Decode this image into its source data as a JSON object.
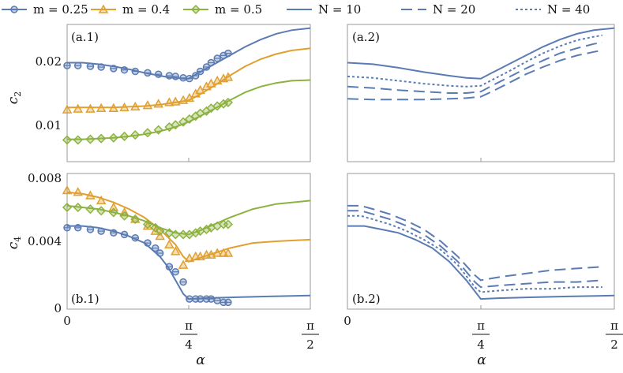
{
  "colors": {
    "blue": "#5b7bb3",
    "orange": "#e0a030",
    "green": "#8cb240"
  },
  "legend": {
    "items": [
      {
        "label": "m = 0.25",
        "color": "#5b7bb3",
        "kind": "marker-circle"
      },
      {
        "label": "m = 0.4",
        "color": "#e0a030",
        "kind": "marker-triangle"
      },
      {
        "label": "m = 0.5",
        "color": "#8cb240",
        "kind": "marker-diamond"
      },
      {
        "label": "N = 10",
        "color": "#5b7bb3",
        "kind": "solid"
      },
      {
        "label": "N = 20",
        "color": "#5b7bb3",
        "kind": "dashed"
      },
      {
        "label": "N = 40",
        "color": "#5b7bb3",
        "kind": "dotted"
      }
    ]
  },
  "axes": {
    "xlabel": "α",
    "x_ticks": [
      "0",
      "π/4",
      "π/2"
    ],
    "ylabel_top": "c2",
    "ylabel_bottom": "c4",
    "y_ticks_top": [
      "0.02",
      "0.01"
    ],
    "y_ticks_bottom": [
      "0.008",
      "0.004",
      "0"
    ]
  },
  "panels": {
    "a1": "(a.1)",
    "a2": "(a.2)",
    "b1": "(b.1)",
    "b2": "(b.2)"
  },
  "chart_data": [
    {
      "panel": "(a.1)",
      "type": "line",
      "xlabel": "",
      "ylabel": "c2",
      "xlim": [
        0,
        1.5708
      ],
      "ylim": [
        0.0055,
        0.0245
      ],
      "series": [
        {
          "name": "m = 0.25",
          "color": "#5b7bb3",
          "x": [
            0,
            0.1,
            0.2,
            0.3,
            0.4,
            0.5,
            0.6,
            0.65,
            0.7,
            0.75,
            0.785,
            0.85,
            0.95,
            1.05,
            1.15,
            1.25,
            1.35,
            1.45,
            1.5708
          ],
          "y": [
            0.0192,
            0.0192,
            0.019,
            0.0187,
            0.0183,
            0.0178,
            0.0174,
            0.0172,
            0.0171,
            0.017,
            0.017,
            0.0178,
            0.019,
            0.0202,
            0.0214,
            0.0224,
            0.0232,
            0.0237,
            0.024
          ],
          "markers": {
            "shape": "circle",
            "x": [
              0,
              0.07,
              0.15,
              0.22,
              0.3,
              0.37,
              0.44,
              0.52,
              0.59,
              0.66,
              0.7,
              0.75,
              0.79,
              0.83,
              0.86,
              0.9,
              0.93,
              0.97,
              1.01,
              1.04
            ],
            "y": [
              0.0188,
              0.0188,
              0.0187,
              0.0186,
              0.0184,
              0.0182,
              0.018,
              0.0178,
              0.0176,
              0.0174,
              0.0173,
              0.0171,
              0.017,
              0.0174,
              0.018,
              0.0186,
              0.0192,
              0.0198,
              0.0202,
              0.0205
            ]
          }
        },
        {
          "name": "m = 0.4",
          "color": "#e0a030",
          "x": [
            0,
            0.1,
            0.2,
            0.3,
            0.4,
            0.5,
            0.6,
            0.7,
            0.785,
            0.85,
            0.95,
            1.05,
            1.15,
            1.25,
            1.35,
            1.45,
            1.5708
          ],
          "y": [
            0.013,
            0.013,
            0.013,
            0.013,
            0.0131,
            0.0132,
            0.0134,
            0.0137,
            0.014,
            0.0147,
            0.016,
            0.0174,
            0.0187,
            0.0197,
            0.0204,
            0.0209,
            0.0212
          ],
          "markers": {
            "shape": "triangle",
            "x": [
              0,
              0.07,
              0.15,
              0.22,
              0.3,
              0.37,
              0.44,
              0.52,
              0.59,
              0.66,
              0.7,
              0.75,
              0.79,
              0.83,
              0.86,
              0.9,
              0.93,
              0.97,
              1.01,
              1.04
            ],
            "y": [
              0.0127,
              0.0128,
              0.0128,
              0.0129,
              0.0129,
              0.013,
              0.0131,
              0.0133,
              0.0135,
              0.0137,
              0.0138,
              0.014,
              0.0143,
              0.0149,
              0.0154,
              0.0159,
              0.0163,
              0.0167,
              0.017,
              0.0172
            ]
          }
        },
        {
          "name": "m = 0.5",
          "color": "#8cb240",
          "x": [
            0,
            0.1,
            0.2,
            0.3,
            0.4,
            0.5,
            0.6,
            0.7,
            0.785,
            0.85,
            0.95,
            1.05,
            1.15,
            1.25,
            1.35,
            1.45,
            1.5708
          ],
          "y": [
            0.0086,
            0.0086,
            0.0087,
            0.0088,
            0.009,
            0.0093,
            0.0097,
            0.0103,
            0.011,
            0.0117,
            0.0128,
            0.014,
            0.0151,
            0.0159,
            0.0164,
            0.0167,
            0.0168
          ],
          "markers": {
            "shape": "diamond",
            "x": [
              0,
              0.07,
              0.15,
              0.22,
              0.3,
              0.37,
              0.44,
              0.52,
              0.59,
              0.66,
              0.7,
              0.75,
              0.79,
              0.83,
              0.86,
              0.9,
              0.93,
              0.97,
              1.01,
              1.04
            ],
            "y": [
              0.0085,
              0.0085,
              0.0086,
              0.0087,
              0.0088,
              0.009,
              0.0092,
              0.0095,
              0.0099,
              0.0103,
              0.0106,
              0.011,
              0.0114,
              0.0118,
              0.0122,
              0.0125,
              0.0129,
              0.0132,
              0.0135,
              0.0137
            ]
          }
        }
      ]
    },
    {
      "panel": "(a.2)",
      "type": "line",
      "xlabel": "",
      "ylabel": "",
      "xlim": [
        0,
        1.5708
      ],
      "ylim": [
        0.0055,
        0.0245
      ],
      "series": [
        {
          "name": "N = 10",
          "color": "#5b7bb3",
          "dash": "solid",
          "x": [
            0,
            0.15,
            0.3,
            0.45,
            0.6,
            0.7,
            0.785,
            0.85,
            0.95,
            1.05,
            1.15,
            1.25,
            1.35,
            1.45,
            1.5708
          ],
          "y": [
            0.0192,
            0.019,
            0.0185,
            0.0179,
            0.0174,
            0.0171,
            0.017,
            0.0178,
            0.019,
            0.0202,
            0.0214,
            0.0224,
            0.0232,
            0.0237,
            0.024
          ]
        },
        {
          "name": "N = 20",
          "color": "#5b7bb3",
          "dash": "dashed",
          "x": [
            0,
            0.15,
            0.3,
            0.45,
            0.6,
            0.7,
            0.785,
            0.85,
            0.95,
            1.05,
            1.15,
            1.25,
            1.35,
            1.45,
            1.5
          ],
          "y": [
            0.0142,
            0.0141,
            0.0141,
            0.0141,
            0.0142,
            0.0143,
            0.0145,
            0.0152,
            0.0164,
            0.0176,
            0.0186,
            0.0195,
            0.0202,
            0.0207,
            0.0209
          ]
        },
        {
          "name": "N = 40",
          "color": "#5b7bb3",
          "dash": "dotted",
          "x": [
            0,
            0.15,
            0.3,
            0.45,
            0.6,
            0.7,
            0.785,
            0.85,
            0.95,
            1.05,
            1.15,
            1.25,
            1.35,
            1.45,
            1.5
          ],
          "y": [
            0.0173,
            0.0171,
            0.0167,
            0.0163,
            0.016,
            0.0159,
            0.016,
            0.0168,
            0.018,
            0.0193,
            0.0205,
            0.0215,
            0.0223,
            0.0228,
            0.023
          ]
        },
        {
          "name": "",
          "color": "#5b7bb3",
          "dash": "dashed",
          "x": [
            0,
            0.15,
            0.3,
            0.45,
            0.6,
            0.7,
            0.785,
            0.85,
            0.95,
            1.05,
            1.15,
            1.25,
            1.35,
            1.45,
            1.5
          ],
          "y": [
            0.0159,
            0.0157,
            0.0154,
            0.0152,
            0.015,
            0.015,
            0.0152,
            0.016,
            0.0172,
            0.0184,
            0.0195,
            0.0205,
            0.0212,
            0.0218,
            0.022
          ]
        }
      ]
    },
    {
      "panel": "(b.1)",
      "type": "line",
      "xlabel": "α",
      "ylabel": "c4",
      "xlim": [
        0,
        1.5708
      ],
      "ylim": [
        0,
        0.008
      ],
      "series": [
        {
          "name": "m = 0.25",
          "color": "#5b7bb3",
          "x": [
            0,
            0.1,
            0.2,
            0.3,
            0.4,
            0.5,
            0.6,
            0.65,
            0.7,
            0.75,
            0.785,
            0.9,
            1.1,
            1.3,
            1.5708
          ],
          "y": [
            0.0049,
            0.0049,
            0.0048,
            0.0046,
            0.0043,
            0.0039,
            0.0031,
            0.0025,
            0.0017,
            0.0009,
            0.0006,
            0.00065,
            0.0007,
            0.00075,
            0.0008
          ],
          "markers": {
            "shape": "circle",
            "x": [
              0,
              0.07,
              0.15,
              0.22,
              0.3,
              0.37,
              0.44,
              0.52,
              0.57,
              0.6,
              0.66,
              0.7,
              0.75,
              0.79,
              0.83,
              0.86,
              0.9,
              0.93,
              0.97,
              1.01,
              1.04
            ],
            "y": [
              0.0048,
              0.0048,
              0.0047,
              0.0046,
              0.0045,
              0.0044,
              0.0042,
              0.0039,
              0.0036,
              0.0033,
              0.0025,
              0.0022,
              0.0016,
              0.0006,
              0.0006,
              0.0006,
              0.0006,
              0.0006,
              0.0005,
              0.0004,
              0.0004
            ]
          }
        },
        {
          "name": "m = 0.4",
          "color": "#e0a030",
          "x": [
            0,
            0.1,
            0.2,
            0.3,
            0.4,
            0.5,
            0.6,
            0.7,
            0.75,
            0.785,
            0.85,
            0.95,
            1.05,
            1.2,
            1.35,
            1.5708
          ],
          "y": [
            0.0069,
            0.0068,
            0.0066,
            0.0063,
            0.0059,
            0.0054,
            0.0047,
            0.0038,
            0.0031,
            0.0028,
            0.003,
            0.0033,
            0.0036,
            0.0039,
            0.004,
            0.0041
          ],
          "markers": {
            "shape": "triangle",
            "x": [
              0,
              0.07,
              0.15,
              0.22,
              0.3,
              0.37,
              0.44,
              0.52,
              0.57,
              0.6,
              0.66,
              0.7,
              0.75,
              0.79,
              0.83,
              0.86,
              0.9,
              0.93,
              0.97,
              1.01,
              1.04
            ],
            "y": [
              0.007,
              0.0069,
              0.0067,
              0.0064,
              0.006,
              0.0057,
              0.0053,
              0.0049,
              0.0046,
              0.0043,
              0.0038,
              0.0034,
              0.0026,
              0.003,
              0.0031,
              0.0031,
              0.0032,
              0.0032,
              0.0033,
              0.0033,
              0.0033
            ]
          }
        },
        {
          "name": "m = 0.5",
          "color": "#8cb240",
          "x": [
            0,
            0.1,
            0.2,
            0.3,
            0.4,
            0.5,
            0.6,
            0.7,
            0.785,
            0.85,
            0.95,
            1.05,
            1.2,
            1.35,
            1.5708
          ],
          "y": [
            0.0061,
            0.006,
            0.0059,
            0.0057,
            0.0055,
            0.0052,
            0.0048,
            0.0045,
            0.0044,
            0.0046,
            0.005,
            0.0054,
            0.0059,
            0.0062,
            0.0064
          ],
          "markers": {
            "shape": "diamond",
            "x": [
              0,
              0.07,
              0.15,
              0.22,
              0.3,
              0.37,
              0.44,
              0.52,
              0.57,
              0.6,
              0.66,
              0.7,
              0.75,
              0.79,
              0.83,
              0.86,
              0.9,
              0.93,
              0.97,
              1.01,
              1.04
            ],
            "y": [
              0.006,
              0.006,
              0.0059,
              0.0058,
              0.0057,
              0.0055,
              0.0053,
              0.005,
              0.0048,
              0.0046,
              0.0045,
              0.0044,
              0.0044,
              0.0044,
              0.0045,
              0.0046,
              0.0047,
              0.0048,
              0.0049,
              0.005,
              0.005
            ]
          }
        }
      ]
    },
    {
      "panel": "(b.2)",
      "type": "line",
      "xlabel": "α",
      "ylabel": "",
      "xlim": [
        0,
        1.5708
      ],
      "ylim": [
        0,
        0.008
      ],
      "series": [
        {
          "name": "N = 10",
          "color": "#5b7bb3",
          "dash": "solid",
          "x": [
            0,
            0.1,
            0.2,
            0.3,
            0.4,
            0.5,
            0.6,
            0.7,
            0.785,
            0.9,
            1.1,
            1.3,
            1.5708
          ],
          "y": [
            0.0049,
            0.0049,
            0.0047,
            0.0045,
            0.0041,
            0.0036,
            0.0028,
            0.0017,
            0.0006,
            0.00065,
            0.0007,
            0.00075,
            0.0008
          ]
        },
        {
          "name": "N = 20",
          "color": "#5b7bb3",
          "dash": "dashed",
          "x": [
            0,
            0.08,
            0.15,
            0.25,
            0.35,
            0.45,
            0.55,
            0.65,
            0.75,
            0.785,
            0.9,
            1.05,
            1.2,
            1.35,
            1.5
          ],
          "y": [
            0.0061,
            0.0061,
            0.0059,
            0.0056,
            0.0052,
            0.0047,
            0.004,
            0.0031,
            0.002,
            0.0017,
            0.0019,
            0.0021,
            0.0023,
            0.0024,
            0.0025
          ]
        },
        {
          "name": "N = 40",
          "color": "#5b7bb3",
          "dash": "dotted",
          "x": [
            0,
            0.08,
            0.15,
            0.25,
            0.35,
            0.45,
            0.55,
            0.65,
            0.75,
            0.785,
            0.9,
            1.05,
            1.2,
            1.35,
            1.5
          ],
          "y": [
            0.0055,
            0.0055,
            0.0053,
            0.005,
            0.0046,
            0.0041,
            0.0035,
            0.0026,
            0.0013,
            0.001,
            0.0011,
            0.0012,
            0.0012,
            0.0013,
            0.0013
          ]
        },
        {
          "name": "",
          "color": "#5b7bb3",
          "dash": "dashed",
          "x": [
            0,
            0.08,
            0.15,
            0.25,
            0.35,
            0.45,
            0.55,
            0.65,
            0.75,
            0.785,
            0.9,
            1.05,
            1.2,
            1.35,
            1.5
          ],
          "y": [
            0.0058,
            0.0058,
            0.0056,
            0.0053,
            0.0049,
            0.0044,
            0.0037,
            0.0028,
            0.0016,
            0.0013,
            0.0014,
            0.0015,
            0.0016,
            0.0016,
            0.0017
          ]
        }
      ]
    }
  ]
}
